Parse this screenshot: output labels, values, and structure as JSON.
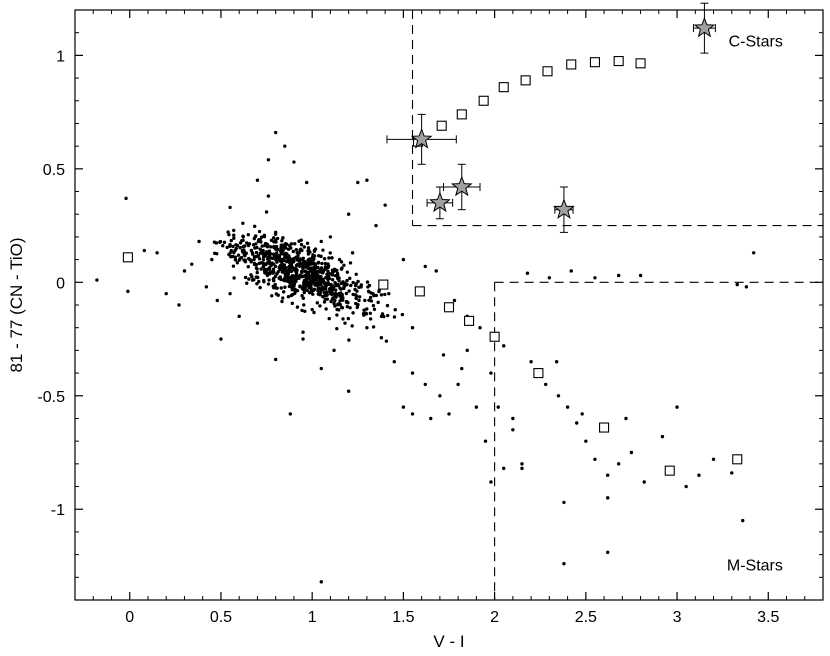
{
  "chart_data": {
    "type": "scatter",
    "title": "",
    "xlabel": "V - I",
    "ylabel": "81 - 77  (CN - TiO)",
    "xlim": [
      -0.3,
      3.8
    ],
    "ylim": [
      -1.4,
      1.2
    ],
    "xticks": [
      {
        "v": 0,
        "label": "0"
      },
      {
        "v": 0.5,
        "label": "0.5"
      },
      {
        "v": 1,
        "label": "1"
      },
      {
        "v": 1.5,
        "label": "1.5"
      },
      {
        "v": 2,
        "label": "2"
      },
      {
        "v": 2.5,
        "label": "2.5"
      },
      {
        "v": 3,
        "label": "3"
      },
      {
        "v": 3.5,
        "label": "3.5"
      }
    ],
    "yticks": [
      {
        "v": 1,
        "label": "1"
      },
      {
        "v": 0.5,
        "label": "0.5"
      },
      {
        "v": 0,
        "label": "0"
      },
      {
        "v": -0.5,
        "label": "-0.5"
      },
      {
        "v": -1,
        "label": "-1"
      }
    ],
    "annotations": [
      {
        "text": "C-Stars",
        "x": 3.58,
        "y": 1.04
      },
      {
        "text": "M-Stars",
        "x": 3.58,
        "y": -1.27
      }
    ],
    "guides": [
      {
        "x1": 1.55,
        "y1": 1.2,
        "x2": 1.55,
        "y2": 0.25
      },
      {
        "x1": 1.55,
        "y1": 0.25,
        "x2": 3.8,
        "y2": 0.25
      },
      {
        "x1": 2.0,
        "y1": 0.0,
        "x2": 3.8,
        "y2": 0.0
      },
      {
        "x1": 2.0,
        "y1": 0.0,
        "x2": 2.0,
        "y2": -1.4
      }
    ],
    "field_stars": {
      "name": "",
      "description_points": [
        [
          -0.18,
          0.01
        ],
        [
          -0.02,
          0.37
        ],
        [
          -0.01,
          -0.04
        ],
        [
          0.08,
          0.14
        ],
        [
          0.15,
          0.13
        ],
        [
          0.2,
          -0.05
        ],
        [
          0.27,
          -0.1
        ],
        [
          0.34,
          0.08
        ],
        [
          0.42,
          -0.02
        ],
        [
          0.5,
          -0.25
        ],
        [
          0.55,
          0.33
        ],
        [
          0.62,
          0.26
        ],
        [
          0.7,
          0.45
        ],
        [
          0.76,
          0.54
        ],
        [
          0.76,
          0.38
        ],
        [
          0.8,
          0.66
        ],
        [
          0.85,
          0.6
        ],
        [
          0.9,
          0.53
        ],
        [
          0.97,
          0.44
        ],
        [
          0.75,
          0.31
        ],
        [
          0.7,
          -0.18
        ],
        [
          0.8,
          -0.34
        ],
        [
          0.95,
          -0.25
        ],
        [
          1.05,
          -0.38
        ],
        [
          1.12,
          -0.3
        ],
        [
          0.88,
          -0.58
        ],
        [
          1.05,
          -1.32
        ],
        [
          1.25,
          0.44
        ],
        [
          1.3,
          0.45
        ],
        [
          1.4,
          0.34
        ],
        [
          1.2,
          0.3
        ],
        [
          1.35,
          0.25
        ],
        [
          1.1,
          0.2
        ],
        [
          1.45,
          -0.35
        ],
        [
          1.55,
          -0.4
        ],
        [
          1.62,
          -0.45
        ],
        [
          1.7,
          -0.5
        ],
        [
          1.55,
          -0.58
        ],
        [
          1.65,
          -0.6
        ],
        [
          1.8,
          -0.45
        ],
        [
          1.85,
          -0.3
        ],
        [
          1.9,
          -0.55
        ],
        [
          1.95,
          -0.7
        ],
        [
          1.98,
          -0.4
        ],
        [
          2.02,
          -0.55
        ],
        [
          2.1,
          -0.65
        ],
        [
          2.15,
          -0.8
        ],
        [
          2.25,
          -0.4
        ],
        [
          2.28,
          -0.45
        ],
        [
          2.35,
          -0.5
        ],
        [
          2.4,
          -0.55
        ],
        [
          2.45,
          -0.62
        ],
        [
          2.5,
          -0.7
        ],
        [
          2.55,
          -0.78
        ],
        [
          2.62,
          -0.85
        ],
        [
          2.68,
          -0.8
        ],
        [
          2.75,
          -0.75
        ],
        [
          2.82,
          -0.88
        ],
        [
          2.92,
          -0.68
        ],
        [
          3.0,
          -0.55
        ],
        [
          3.05,
          -0.9
        ],
        [
          3.12,
          -0.85
        ],
        [
          3.2,
          -0.78
        ],
        [
          3.3,
          -0.84
        ],
        [
          3.36,
          -1.05
        ],
        [
          3.38,
          -0.02
        ],
        [
          3.42,
          0.13
        ],
        [
          3.33,
          -0.01
        ],
        [
          2.38,
          -0.97
        ],
        [
          2.38,
          -1.24
        ],
        [
          2.62,
          -1.19
        ],
        [
          2.62,
          -0.95
        ],
        [
          2.72,
          -0.6
        ],
        [
          2.8,
          0.03
        ],
        [
          2.68,
          0.03
        ],
        [
          2.55,
          0.02
        ],
        [
          2.42,
          0.05
        ],
        [
          2.3,
          0.02
        ],
        [
          2.18,
          0.04
        ],
        [
          2.1,
          -0.6
        ],
        [
          2.05,
          -0.82
        ],
        [
          1.98,
          -0.88
        ],
        [
          1.5,
          -0.55
        ],
        [
          1.75,
          -0.58
        ],
        [
          2.15,
          -0.82
        ],
        [
          2.2,
          -0.35
        ],
        [
          2.34,
          -0.35
        ],
        [
          2.48,
          -0.58
        ],
        [
          1.2,
          -0.48
        ],
        [
          1.55,
          -0.2
        ],
        [
          1.62,
          0.07
        ],
        [
          1.68,
          0.05
        ],
        [
          1.5,
          0.1
        ],
        [
          1.78,
          -0.08
        ],
        [
          1.85,
          -0.15
        ],
        [
          1.92,
          -0.2
        ],
        [
          2.05,
          -0.28
        ],
        [
          1.72,
          -0.32
        ],
        [
          1.82,
          -0.38
        ],
        [
          0.45,
          0.1
        ],
        [
          0.38,
          0.18
        ],
        [
          0.3,
          0.05
        ],
        [
          0.48,
          -0.08
        ],
        [
          0.6,
          -0.15
        ],
        [
          0.65,
          0.21
        ],
        [
          0.55,
          -0.05
        ],
        [
          1.15,
          0.1
        ],
        [
          1.0,
          0.06
        ],
        [
          0.9,
          0.0
        ],
        [
          0.85,
          0.12
        ],
        [
          1.25,
          -0.1
        ],
        [
          1.3,
          -0.2
        ],
        [
          1.38,
          -0.15
        ],
        [
          1.42,
          -0.05
        ],
        [
          1.18,
          -0.18
        ],
        [
          1.1,
          -0.05
        ],
        [
          1.0,
          -0.12
        ],
        [
          0.95,
          -0.22
        ],
        [
          1.05,
          0.18
        ],
        [
          0.8,
          0.22
        ]
      ],
      "cluster": {
        "count": 800,
        "seed": 7
      }
    },
    "model_track": {
      "name": "",
      "points": [
        [
          -0.01,
          0.11
        ],
        [
          1.39,
          -0.01
        ],
        [
          1.59,
          -0.04
        ],
        [
          1.75,
          -0.11
        ],
        [
          1.86,
          -0.17
        ],
        [
          2.0,
          -0.24
        ],
        [
          2.24,
          -0.4
        ],
        [
          2.6,
          -0.64
        ],
        [
          2.96,
          -0.83
        ],
        [
          3.33,
          -0.78
        ],
        [
          1.58,
          0.62
        ],
        [
          1.71,
          0.69
        ],
        [
          1.82,
          0.74
        ],
        [
          1.94,
          0.8
        ],
        [
          2.05,
          0.86
        ],
        [
          2.17,
          0.89
        ],
        [
          2.29,
          0.93
        ],
        [
          2.42,
          0.96
        ],
        [
          2.55,
          0.97
        ],
        [
          2.68,
          0.975
        ],
        [
          2.8,
          0.965
        ]
      ]
    },
    "carbon_stars": {
      "name": "",
      "points": [
        {
          "x": 3.15,
          "y": 1.12,
          "xerr": 0.06,
          "yerr": 0.11
        },
        {
          "x": 1.6,
          "y": 0.63,
          "xerr": 0.19,
          "yerr": 0.11
        },
        {
          "x": 1.82,
          "y": 0.42,
          "xerr": 0.1,
          "yerr": 0.1
        },
        {
          "x": 1.7,
          "y": 0.35,
          "xerr": 0.07,
          "yerr": 0.07
        },
        {
          "x": 2.38,
          "y": 0.32,
          "xerr": 0.05,
          "yerr": 0.1
        }
      ]
    },
    "colors": {
      "axis": "#000000",
      "points": "#000000",
      "star_fill": "#a0a0a0",
      "guide": "#000000"
    }
  }
}
